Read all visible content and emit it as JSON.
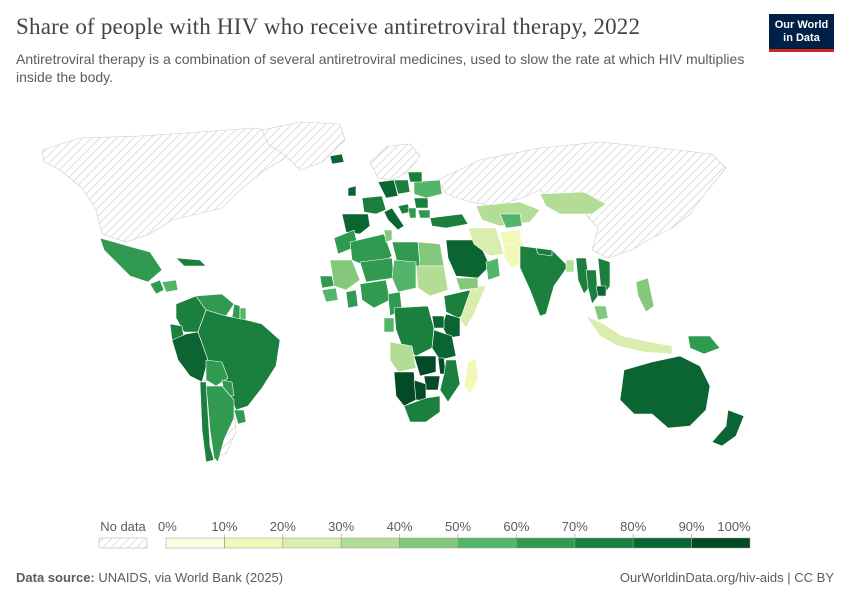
{
  "header": {
    "title": "Share of people with HIV who receive antiretroviral therapy, 2022",
    "subtitle": "Antiretroviral therapy is a combination of several antiretroviral medicines, used to slow the rate at which HIV multiplies inside the body.",
    "logo_line1": "Our World",
    "logo_line2": "in Data"
  },
  "legend": {
    "no_data_label": "No data",
    "ticks": [
      "0%",
      "10%",
      "20%",
      "30%",
      "40%",
      "50%",
      "60%",
      "70%",
      "80%",
      "90%",
      "100%"
    ],
    "colors": [
      "#fcfee3",
      "#f2f8b8",
      "#d8edae",
      "#b3dd95",
      "#84c97b",
      "#53b56a",
      "#2f9a50",
      "#1b7f3d",
      "#0b6532",
      "#054a26"
    ],
    "no_data_color": "#d9d9d9"
  },
  "footer": {
    "source_label": "Data source:",
    "source_text": "UNAIDS, via World Bank (2025)",
    "url": "OurWorldinData.org/hiv-aids | CC BY"
  },
  "chart_data": {
    "type": "choropleth",
    "year": 2022,
    "unit": "%",
    "bins": [
      0,
      10,
      20,
      30,
      40,
      50,
      60,
      70,
      80,
      90,
      100
    ],
    "values": {
      "Mexico": 65,
      "Cuba": 75,
      "Guatemala": 60,
      "Honduras": 55,
      "Colombia": 70,
      "Venezuela": 65,
      "Guyana": 60,
      "Suriname": 55,
      "Ecuador": 75,
      "Peru": 85,
      "Brazil": 75,
      "Bolivia": 65,
      "Paraguay": 60,
      "Argentina": 65,
      "Chile": 75,
      "Uruguay": 65,
      "Iceland": 85,
      "Ireland": 80,
      "Spain": 85,
      "France": 75,
      "Germany": 85,
      "Poland": 75,
      "Italy": 85,
      "Croatia": 75,
      "Serbia": 60,
      "Romania": 75,
      "Bulgaria": 65,
      "Ukraine": 55,
      "Belarus": 70,
      "Turkey": 75,
      "Morocco": 65,
      "Algeria": 65,
      "Tunisia": 40,
      "Libya": 60,
      "Egypt": 45,
      "Sudan": 30,
      "Mali": 45,
      "Niger": 65,
      "Chad": 55,
      "Senegal": 60,
      "Guinea": 55,
      "Ghana": 60,
      "Nigeria": 65,
      "Cameroon": 65,
      "Ethiopia": 75,
      "Somalia": 25,
      "Kenya": 80,
      "Uganda": 85,
      "DR Congo": 75,
      "Gabon": 55,
      "Angola": 35,
      "Tanzania": 85,
      "Zambia": 90,
      "Malawi": 90,
      "Mozambique": 75,
      "Zimbabwe": 90,
      "Namibia": 90,
      "Botswana": 90,
      "South Africa": 75,
      "Madagascar": 15,
      "Saudi Arabia": 85,
      "Yemen": 40,
      "Oman": 55,
      "Iran": 25,
      "Afghanistan": 15,
      "Pakistan": 15,
      "Kazakhstan": 35,
      "Uzbekistan": 55,
      "Mongolia": 35,
      "India": 70,
      "Nepal": 70,
      "Bangladesh": 30,
      "Myanmar": 75,
      "Thailand": 75,
      "Vietnam": 70,
      "Cambodia": 85,
      "Philippines": 45,
      "Malaysia": 40,
      "Indonesia": 25,
      "Papua New Guinea": 60,
      "Australia": 85,
      "New Zealand": 85
    }
  }
}
